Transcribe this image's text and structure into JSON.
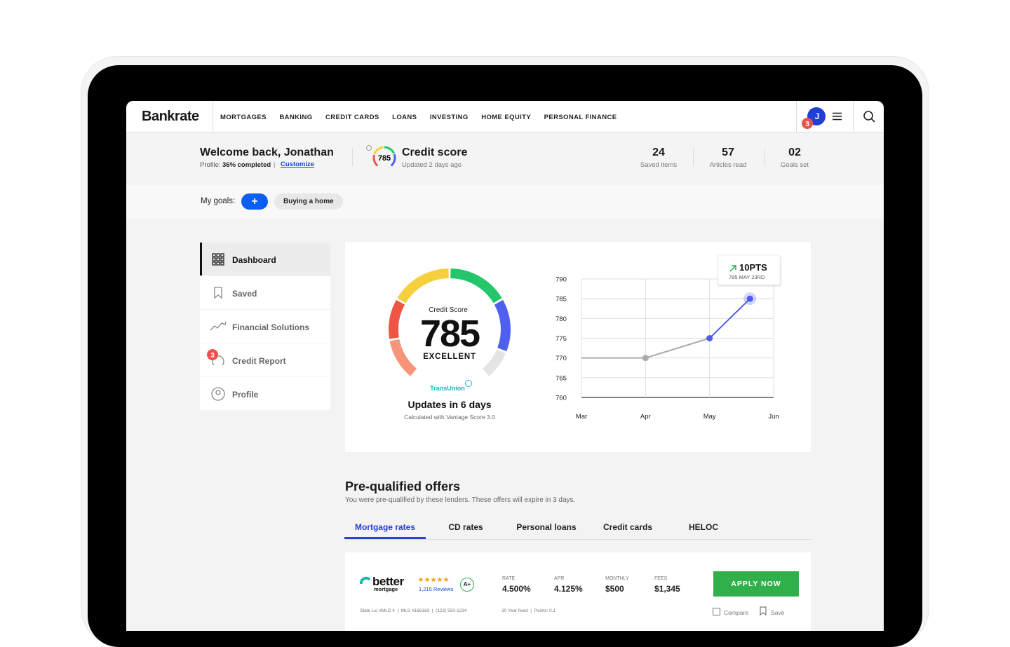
{
  "header": {
    "logo": "Bankrate",
    "nav": [
      "MORTGAGES",
      "BANKING",
      "CREDIT CARDS",
      "LOANS",
      "INVESTING",
      "HOME EQUITY",
      "PERSONAL FINANCE"
    ],
    "avatar": "J",
    "notification_count": "3"
  },
  "welcome": {
    "title": "Welcome back, Jonathan",
    "profile_label": "Profile:",
    "profile_value": "36% completed",
    "separator": "|",
    "customize": "Customize"
  },
  "credit_summary": {
    "score": "785",
    "title": "Credit score",
    "updated": "Updated 2 days ago"
  },
  "stats": [
    {
      "value": "24",
      "label": "Saved items"
    },
    {
      "value": "57",
      "label": "Articles read"
    },
    {
      "value": "02",
      "label": "Goals set"
    }
  ],
  "goals": {
    "label": "My goals:",
    "add": "+",
    "items": [
      "Buying a home"
    ]
  },
  "sidebar": {
    "items": [
      "Dashboard",
      "Saved",
      "Financial Solutions",
      "Credit Report",
      "Profile"
    ],
    "badge": "3"
  },
  "score_card": {
    "caption": "Credit Score",
    "score": "785",
    "rating": "EXCELLENT",
    "bureau": "TransUnion",
    "updates": "Updates in 6 days",
    "note": "Calculated with Vantage Score 3.0"
  },
  "chart_data": {
    "type": "line",
    "x": [
      0,
      1,
      2,
      2.63
    ],
    "values": [
      770,
      770,
      775,
      785
    ],
    "xlim": [
      0,
      3
    ],
    "xticks": [
      {
        "value": 0,
        "label": "Mar"
      },
      {
        "value": 1,
        "label": "Apr"
      },
      {
        "value": 2,
        "label": "May"
      },
      {
        "value": 3,
        "label": "Jun"
      }
    ],
    "ylim": [
      760,
      790
    ],
    "yticks": [
      760,
      765,
      770,
      775,
      780,
      785,
      790
    ],
    "grid": true,
    "color": "#4b5cf2",
    "history_color": "#aaaaaa",
    "annotation": {
      "change": "10PTS",
      "detail": "785 MAY 23RD"
    }
  },
  "offers": {
    "title": "Pre-qualified offers",
    "subtitle": "You were pre-qualified by these lenders. These offers will expire in 3 days.",
    "tabs": [
      "Mortgage rates",
      "CD rates",
      "Personal loans",
      "Credit cards",
      "HELOC"
    ],
    "offer": {
      "lender": "better",
      "lender_sub": "mortgage",
      "reviews": "1,215 Reviews",
      "grade": "A+",
      "metrics": [
        {
          "label": "RATE",
          "value": "4.500%"
        },
        {
          "label": "APR",
          "value": "4.125%"
        },
        {
          "label": "MONTHLY",
          "value": "$500"
        },
        {
          "label": "FEES",
          "value": "$1,345"
        }
      ],
      "cta": "APPLY NOW",
      "compare": "Compare",
      "save": "Save",
      "license": "State Lic #MLD 4  |  MLS #168163  |  (123) 550-1234",
      "terms": "30 Year fixed  |  Points: 0.1"
    }
  }
}
